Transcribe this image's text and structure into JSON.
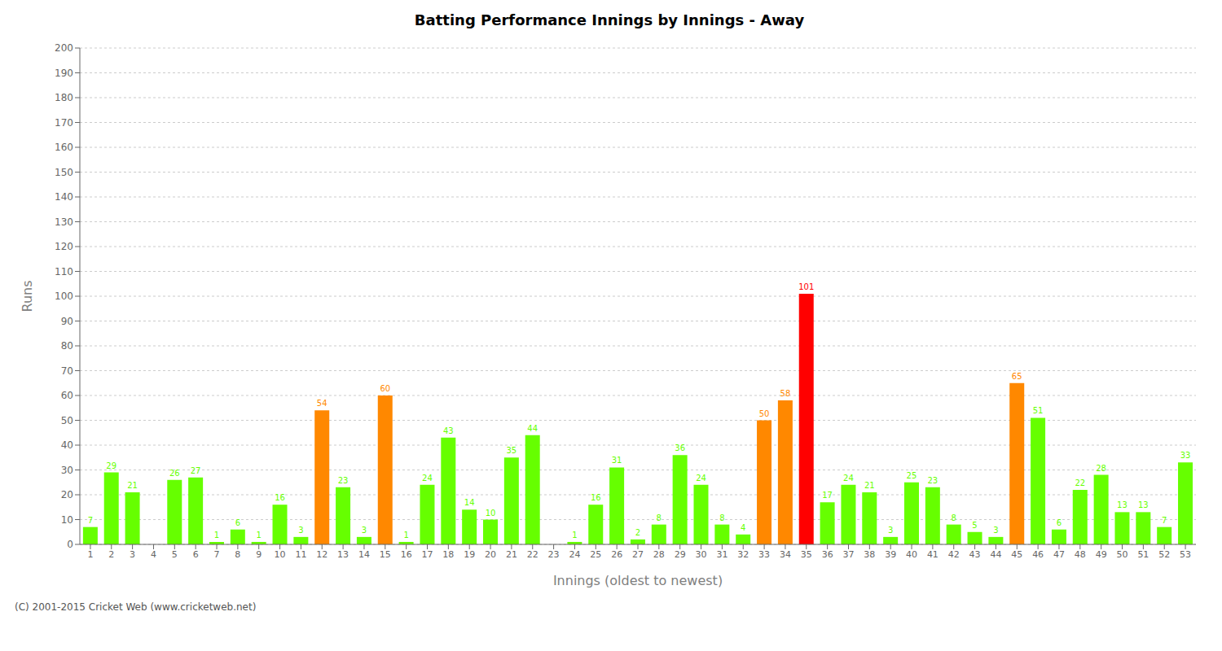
{
  "chart_data": {
    "type": "bar",
    "title": "Batting Performance Innings by Innings - Away",
    "xlabel": "Innings (oldest to newest)",
    "ylabel": "Runs",
    "categories": [
      "1",
      "2",
      "3",
      "4",
      "5",
      "6",
      "7",
      "8",
      "9",
      "10",
      "11",
      "12",
      "13",
      "14",
      "15",
      "16",
      "17",
      "18",
      "19",
      "20",
      "21",
      "22",
      "23",
      "24",
      "25",
      "26",
      "27",
      "28",
      "29",
      "30",
      "31",
      "32",
      "33",
      "34",
      "35",
      "36",
      "37",
      "38",
      "39",
      "40",
      "41",
      "42",
      "43",
      "44",
      "45",
      "46",
      "47",
      "48",
      "49",
      "50",
      "51",
      "52",
      "53"
    ],
    "values": [
      7,
      29,
      21,
      0,
      26,
      27,
      1,
      6,
      1,
      16,
      3,
      54,
      23,
      3,
      60,
      1,
      24,
      43,
      14,
      10,
      35,
      44,
      0,
      1,
      16,
      31,
      2,
      8,
      36,
      24,
      8,
      4,
      50,
      58,
      101,
      17,
      24,
      21,
      3,
      25,
      23,
      8,
      5,
      3,
      65,
      51,
      6,
      22,
      28,
      13,
      13,
      7,
      33
    ],
    "colors": [
      "#66ff00",
      "#66ff00",
      "#66ff00",
      "#66ff00",
      "#66ff00",
      "#66ff00",
      "#66ff00",
      "#66ff00",
      "#66ff00",
      "#66ff00",
      "#66ff00",
      "#ff8800",
      "#66ff00",
      "#66ff00",
      "#ff8800",
      "#66ff00",
      "#66ff00",
      "#66ff00",
      "#66ff00",
      "#66ff00",
      "#66ff00",
      "#66ff00",
      "#66ff00",
      "#66ff00",
      "#66ff00",
      "#66ff00",
      "#66ff00",
      "#66ff00",
      "#66ff00",
      "#66ff00",
      "#66ff00",
      "#66ff00",
      "#ff8800",
      "#ff8800",
      "#ff0000",
      "#66ff00",
      "#66ff00",
      "#66ff00",
      "#66ff00",
      "#66ff00",
      "#66ff00",
      "#66ff00",
      "#66ff00",
      "#66ff00",
      "#ff8800",
      "#66ff00",
      "#66ff00",
      "#66ff00",
      "#66ff00",
      "#66ff00",
      "#66ff00",
      "#66ff00",
      "#66ff00"
    ],
    "ylim": [
      0,
      200
    ],
    "yticks": [
      0,
      10,
      20,
      30,
      40,
      50,
      60,
      70,
      80,
      90,
      100,
      110,
      120,
      130,
      140,
      150,
      160,
      170,
      180,
      190,
      200
    ],
    "grid": true,
    "data_labels": true,
    "annotations": [
      "(C) 2001-2015 Cricket Web (www.cricketweb.net)"
    ]
  }
}
